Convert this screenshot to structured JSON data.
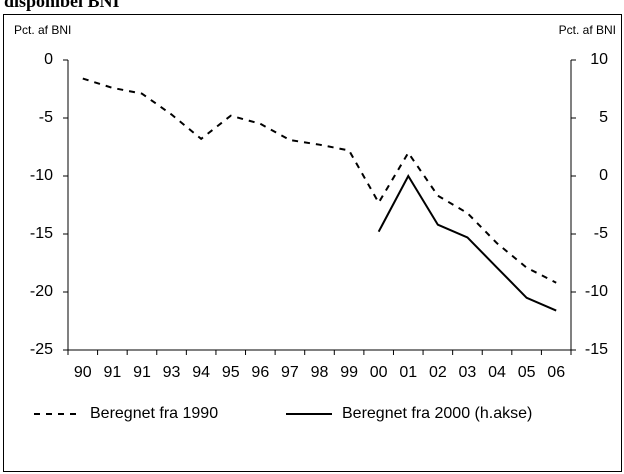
{
  "chart_data": {
    "type": "line",
    "title": "disponibel BNI",
    "y_label": "Pct. af BNI",
    "y2_label": "Pct. af BNI",
    "categories": [
      "90",
      "91",
      "91",
      "93",
      "94",
      "95",
      "96",
      "97",
      "98",
      "99",
      "00",
      "01",
      "02",
      "03",
      "04",
      "05",
      "06"
    ],
    "series": [
      {
        "name": "Beregnet fra 1990",
        "color": "#000000",
        "style": "dashed",
        "values": [
          -1.6,
          -2.4,
          -2.9,
          -4.7,
          -6.8,
          -4.8,
          -5.5,
          -6.9,
          -7.3,
          -7.8,
          -12.3,
          -8.0,
          -11.7,
          -13.2,
          -15.8,
          -17.9,
          -19.2
        ]
      },
      {
        "name": "Beregnet fra 2000 (h.akse)",
        "color": "#000000",
        "style": "solid",
        "axis": "y2",
        "values": [
          null,
          null,
          null,
          null,
          null,
          null,
          null,
          null,
          null,
          null,
          -4.8,
          0,
          -4.2,
          -5.3,
          -7.9,
          -10.5,
          -11.6
        ]
      }
    ],
    "ylim": [
      -25,
      0
    ],
    "yticks": [
      0,
      -5,
      -10,
      -15,
      -20,
      -25
    ],
    "y2lim": [
      -15,
      10
    ],
    "y2ticks": [
      10,
      5,
      0,
      -5,
      -10,
      -15
    ],
    "grid": false
  }
}
